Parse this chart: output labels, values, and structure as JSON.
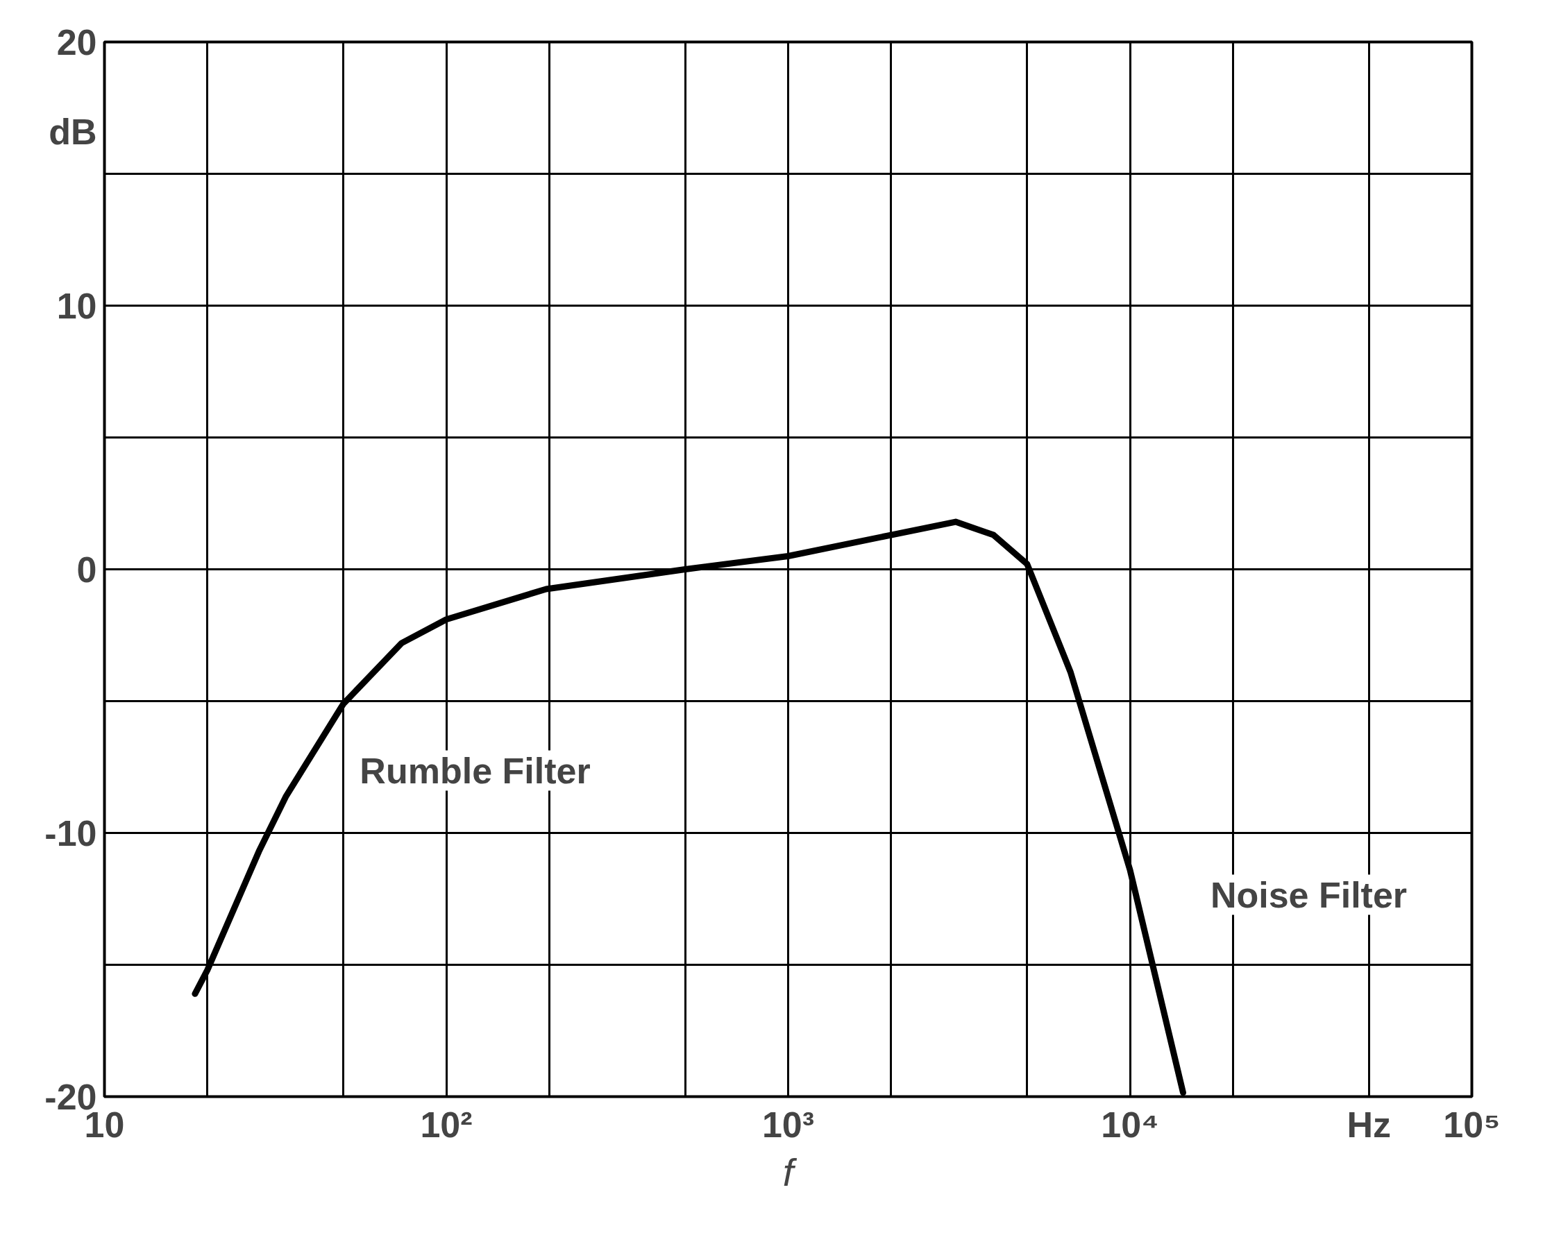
{
  "chart_data": {
    "type": "line",
    "xlabel": "f",
    "ylabel": "dB",
    "log": "x",
    "grid": true,
    "marker": "none",
    "line_style": "solid",
    "x": [
      18.4,
      20,
      28.3,
      34,
      50,
      74,
      100,
      196,
      500,
      1000,
      2000,
      3090,
      3990,
      5000,
      6700,
      10000,
      14300
    ],
    "series": [
      {
        "color": "#000000",
        "values": [
          -16.1,
          -15.2,
          -10.7,
          -8.6,
          -5.1,
          -2.8,
          -1.9,
          -0.75,
          0,
          0.5,
          1.3,
          1.8,
          1.3,
          0.2,
          -3.9,
          -11.4,
          -19.85
        ]
      }
    ],
    "xlim": [
      10,
      100000
    ],
    "ylim": [
      -20,
      20
    ],
    "xticks": [
      10,
      {
        "value": 20,
        "label": null
      },
      {
        "value": 50,
        "label": null
      },
      {
        "value": 100,
        "label": "10²"
      },
      {
        "value": 200,
        "label": null
      },
      {
        "value": 500,
        "label": null
      },
      {
        "value": 1000,
        "label": "10³"
      },
      {
        "value": 2000,
        "label": null
      },
      {
        "value": 5000,
        "label": null
      },
      {
        "value": 10000,
        "label": "10⁴"
      },
      {
        "value": 20000,
        "label": null
      },
      {
        "value": 50000,
        "label": "Hz"
      },
      {
        "value": 100000,
        "label": "10⁵"
      }
    ],
    "yticks": [
      -20,
      {
        "value": -15,
        "label": null
      },
      -10,
      {
        "value": -5,
        "label": null
      },
      0,
      {
        "value": 5,
        "label": null
      },
      10,
      {
        "value": 15,
        "label": null
      },
      20
    ],
    "annotations": [
      "Rumble Filter",
      "Noise Filter"
    ]
  }
}
